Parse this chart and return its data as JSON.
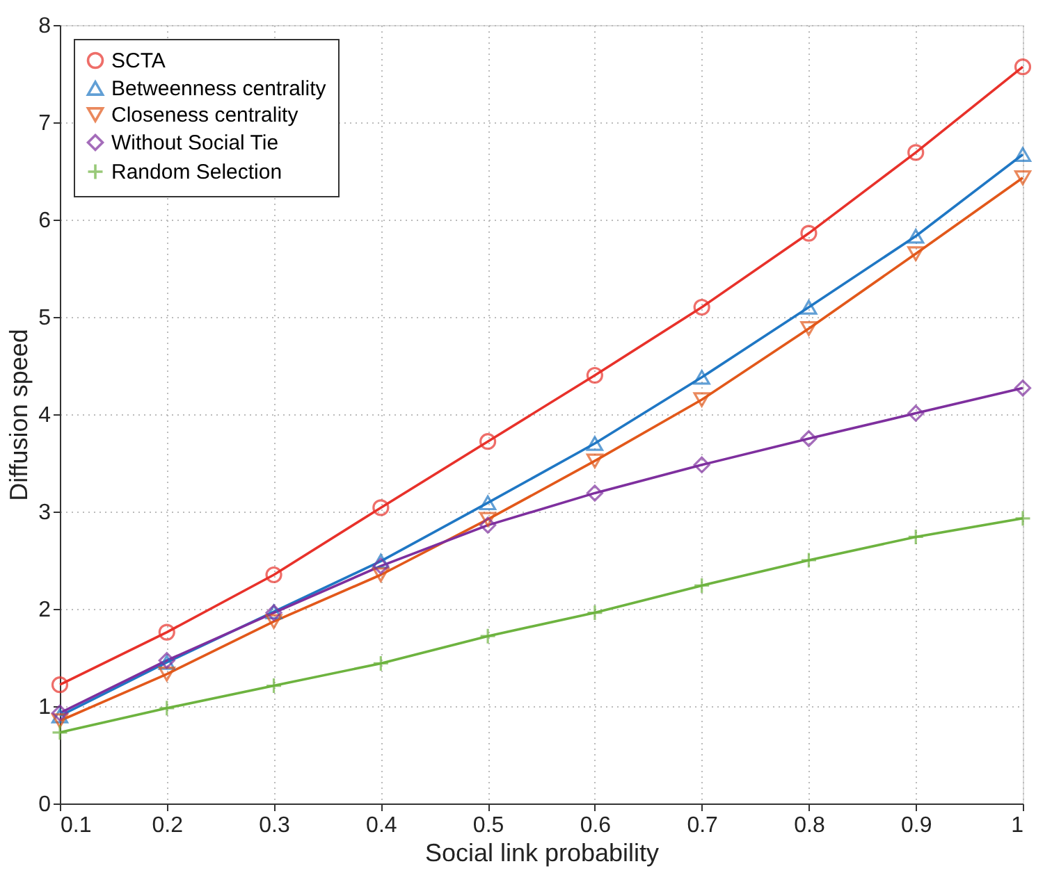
{
  "chart_data": {
    "type": "line",
    "xlabel": "Social link probability",
    "ylabel": "Diffusion speed",
    "x": [
      0.1,
      0.2,
      0.3,
      0.4,
      0.5,
      0.6,
      0.7,
      0.8,
      0.9,
      1
    ],
    "xlim": [
      0.1,
      1
    ],
    "xticks": [
      0.1,
      0.2,
      0.3,
      0.4,
      0.5,
      0.6,
      0.7,
      0.8,
      0.9,
      1
    ],
    "ylim": [
      0,
      8
    ],
    "yticks": [
      0,
      1,
      2,
      3,
      4,
      5,
      6,
      7,
      8
    ],
    "grid": true,
    "legend": "top left",
    "line_style": "solid",
    "series": [
      {
        "name": "SCTA",
        "color": "#e8312a",
        "marker": "circle",
        "values": [
          1.22,
          1.76,
          2.35,
          3.04,
          3.72,
          4.4,
          5.1,
          5.86,
          6.69,
          7.57
        ]
      },
      {
        "name": "Betweenness centrality",
        "color": "#1f77c4",
        "marker": "triangle",
        "values": [
          0.9,
          1.45,
          1.97,
          2.49,
          3.09,
          3.7,
          4.38,
          5.1,
          5.83,
          6.67
        ]
      },
      {
        "name": "Closeness centrality",
        "color": "#e2581a",
        "marker": "triangle_down",
        "values": [
          0.85,
          1.33,
          1.87,
          2.35,
          2.92,
          3.52,
          4.15,
          4.88,
          5.65,
          6.43
        ]
      },
      {
        "name": "Without Social Tie",
        "color": "#7e2f9e",
        "marker": "diamond",
        "values": [
          0.93,
          1.47,
          1.96,
          2.44,
          2.86,
          3.19,
          3.48,
          3.75,
          4.01,
          4.27
        ]
      },
      {
        "name": "Random Selection",
        "color": "#6db33f",
        "marker": "cross",
        "values": [
          0.73,
          0.98,
          1.21,
          1.44,
          1.72,
          1.96,
          2.24,
          2.5,
          2.74,
          2.93
        ]
      }
    ]
  }
}
